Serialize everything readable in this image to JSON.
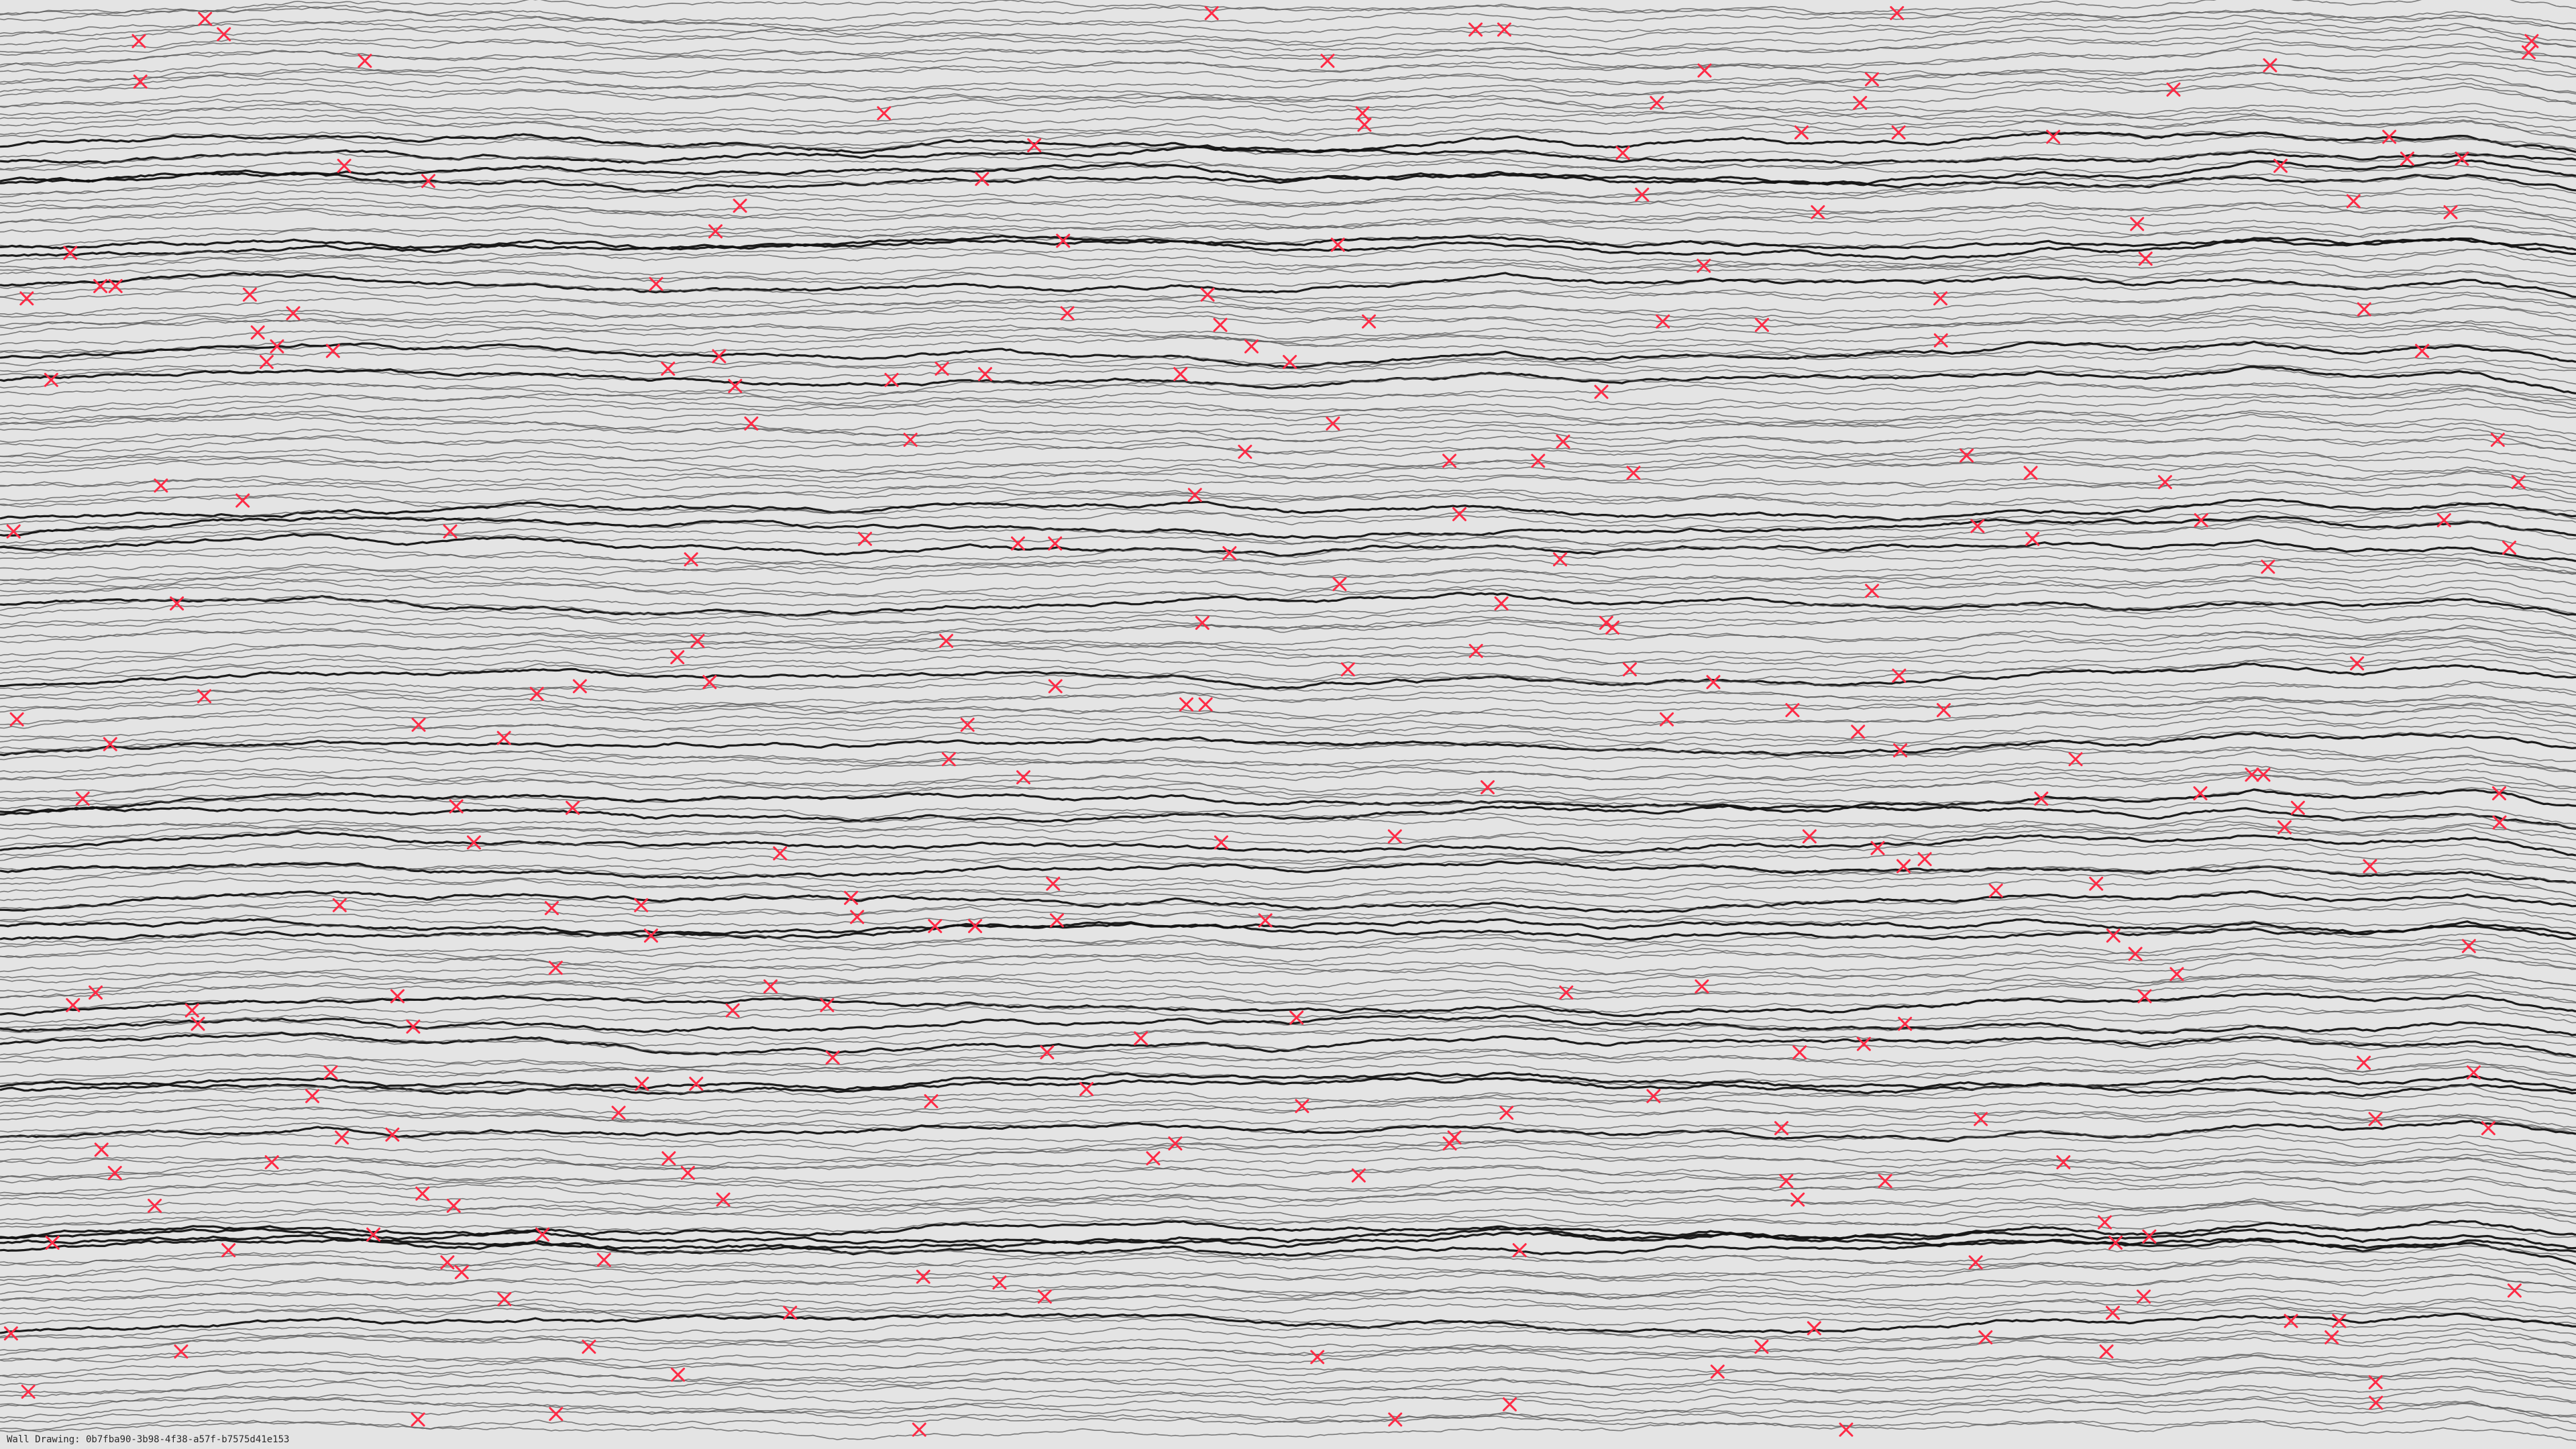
{
  "drawing": {
    "caption": "Wall Drawing: 0b7fba90-3b98-4f38-a57f-b7575d41e153",
    "background_color": "#e4e4e4",
    "line_color_thin": "#555555",
    "line_color_bold": "#111111",
    "marker_color": "#ff2a45",
    "marker_shape": "x-mark"
  }
}
